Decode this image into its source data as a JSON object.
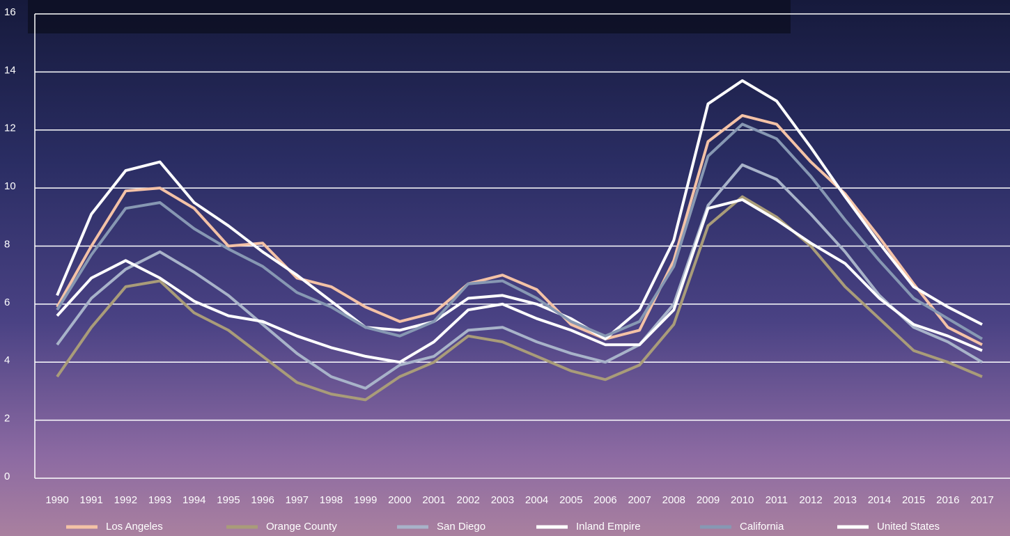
{
  "chart_data": {
    "type": "line",
    "categories": [
      "1990",
      "1991",
      "1992",
      "1993",
      "1994",
      "1995",
      "1996",
      "1997",
      "1998",
      "1999",
      "2000",
      "2001",
      "2002",
      "2003",
      "2004",
      "2005",
      "2006",
      "2007",
      "2008",
      "2009",
      "2010",
      "2011",
      "2012",
      "2013",
      "2014",
      "2015",
      "2016",
      "2017"
    ],
    "series": [
      {
        "name": "Los Angeles",
        "color": "#f4c2a6",
        "values": [
          5.9,
          8.0,
          9.9,
          10.0,
          9.3,
          8.0,
          8.1,
          6.9,
          6.6,
          5.9,
          5.4,
          5.7,
          6.7,
          7.0,
          6.5,
          5.3,
          4.8,
          5.1,
          7.5,
          11.6,
          12.5,
          12.2,
          10.9,
          9.8,
          8.3,
          6.7,
          5.2,
          4.6
        ]
      },
      {
        "name": "Orange County",
        "color": "#a99c79",
        "values": [
          3.5,
          5.2,
          6.6,
          6.8,
          5.7,
          5.1,
          4.2,
          3.3,
          2.9,
          2.7,
          3.5,
          4.0,
          4.9,
          4.7,
          4.2,
          3.7,
          3.4,
          3.9,
          5.3,
          8.7,
          9.7,
          9.0,
          8.0,
          6.6,
          5.5,
          4.4,
          4.0,
          3.5
        ]
      },
      {
        "name": "San Diego",
        "color": "#a8b3c9",
        "values": [
          4.6,
          6.2,
          7.2,
          7.8,
          7.1,
          6.3,
          5.3,
          4.3,
          3.5,
          3.1,
          3.9,
          4.2,
          5.1,
          5.2,
          4.7,
          4.3,
          4.0,
          4.6,
          6.0,
          9.4,
          10.8,
          10.3,
          9.1,
          7.8,
          6.3,
          5.2,
          4.7,
          4.0
        ]
      },
      {
        "name": "Inland Empire",
        "color": "#ffffff",
        "values": [
          6.3,
          9.1,
          10.6,
          10.9,
          9.5,
          8.7,
          7.8,
          7.0,
          6.1,
          5.2,
          5.1,
          5.4,
          6.2,
          6.3,
          6.0,
          5.5,
          4.8,
          5.8,
          8.2,
          12.9,
          13.7,
          13.0,
          11.4,
          9.7,
          8.1,
          6.6,
          5.9,
          5.3
        ]
      },
      {
        "name": "California",
        "color": "#8798b3",
        "values": [
          5.8,
          7.7,
          9.3,
          9.5,
          8.6,
          7.9,
          7.3,
          6.4,
          5.9,
          5.2,
          4.9,
          5.4,
          6.7,
          6.8,
          6.2,
          5.4,
          4.9,
          5.4,
          7.3,
          11.1,
          12.2,
          11.7,
          10.4,
          8.9,
          7.5,
          6.2,
          5.5,
          4.8
        ]
      },
      {
        "name": "United States",
        "color": "#ffffff",
        "values": [
          5.6,
          6.9,
          7.5,
          6.9,
          6.1,
          5.6,
          5.4,
          4.9,
          4.5,
          4.2,
          4.0,
          4.7,
          5.8,
          6.0,
          5.5,
          5.1,
          4.6,
          4.6,
          5.8,
          9.3,
          9.6,
          8.9,
          8.1,
          7.4,
          6.2,
          5.3,
          4.9,
          4.4
        ]
      }
    ],
    "ylim": [
      0,
      16
    ],
    "yticks": [
      0,
      2,
      4,
      6,
      8,
      10,
      12,
      14,
      16
    ],
    "grid": true
  }
}
